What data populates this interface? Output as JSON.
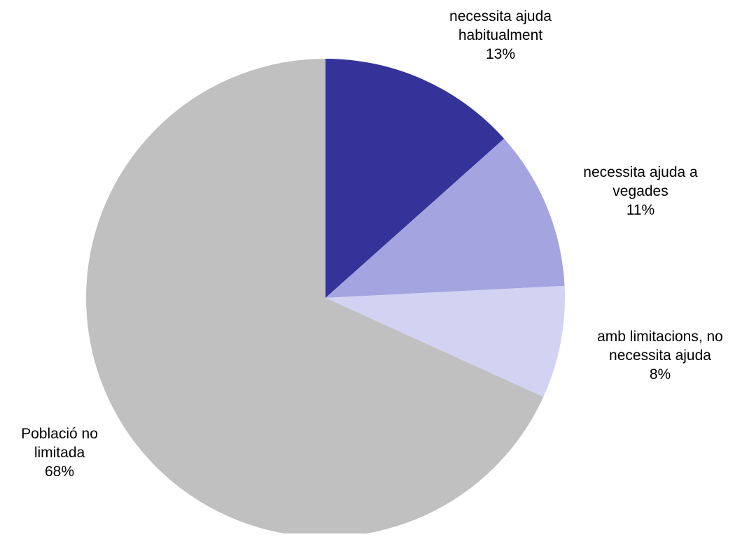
{
  "chart_data": {
    "type": "pie",
    "start": "12 o'clock, clockwise",
    "slices": [
      {
        "label_lines": [
          "necessita ajuda",
          "habitualment"
        ],
        "value_label": "13%",
        "value": 13.4,
        "color": "#333399"
      },
      {
        "label_lines": [
          "necessita ajuda a",
          "vegades"
        ],
        "value_label": "11%",
        "value": 10.8,
        "color": "#a4a4e0"
      },
      {
        "label_lines": [
          "amb limitacions, no",
          "necessita ajuda"
        ],
        "value_label": "8%",
        "value": 7.6,
        "color": "#d2d2f2"
      },
      {
        "label_lines": [
          "Població no",
          "limitada"
        ],
        "value_label": "68%",
        "value": 68.2,
        "color": "#c0c0c0"
      }
    ]
  }
}
